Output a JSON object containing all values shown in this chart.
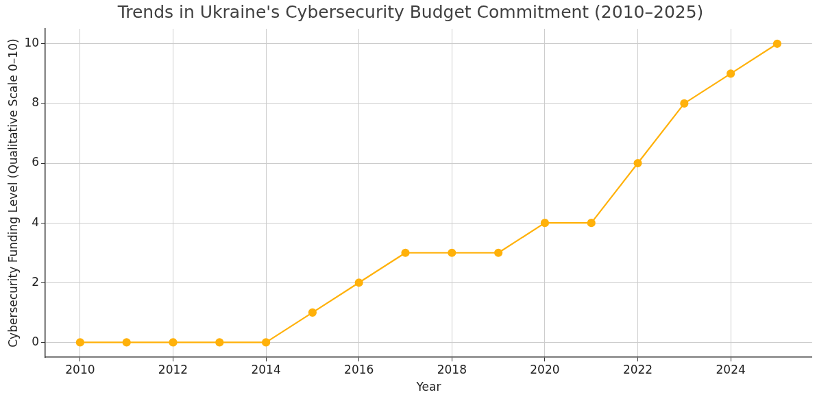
{
  "chart_data": {
    "type": "line",
    "title": "Trends in Ukraine's Cybersecurity Budget Commitment (2010–2025)",
    "xlabel": "Year",
    "ylabel": "Cybersecurity Funding Level (Qualitative Scale 0–10)",
    "x": [
      2010,
      2011,
      2012,
      2013,
      2014,
      2015,
      2016,
      2017,
      2018,
      2019,
      2020,
      2021,
      2022,
      2023,
      2024,
      2025
    ],
    "series": [
      {
        "color": "#ffb10a",
        "values": [
          0,
          0,
          0,
          0,
          0,
          1,
          2,
          3,
          3,
          3,
          4,
          4,
          6,
          8,
          9,
          10
        ]
      }
    ],
    "xlim": [
      2009.25,
      2025.75
    ],
    "xticks": [
      2010,
      2012,
      2014,
      2016,
      2018,
      2020,
      2022,
      2024
    ],
    "ylim": [
      -0.5,
      10.5
    ],
    "yticks": [
      0,
      2,
      4,
      6,
      8,
      10
    ],
    "grid": true,
    "marker": "circle",
    "line_style": "solid",
    "legend": false
  }
}
